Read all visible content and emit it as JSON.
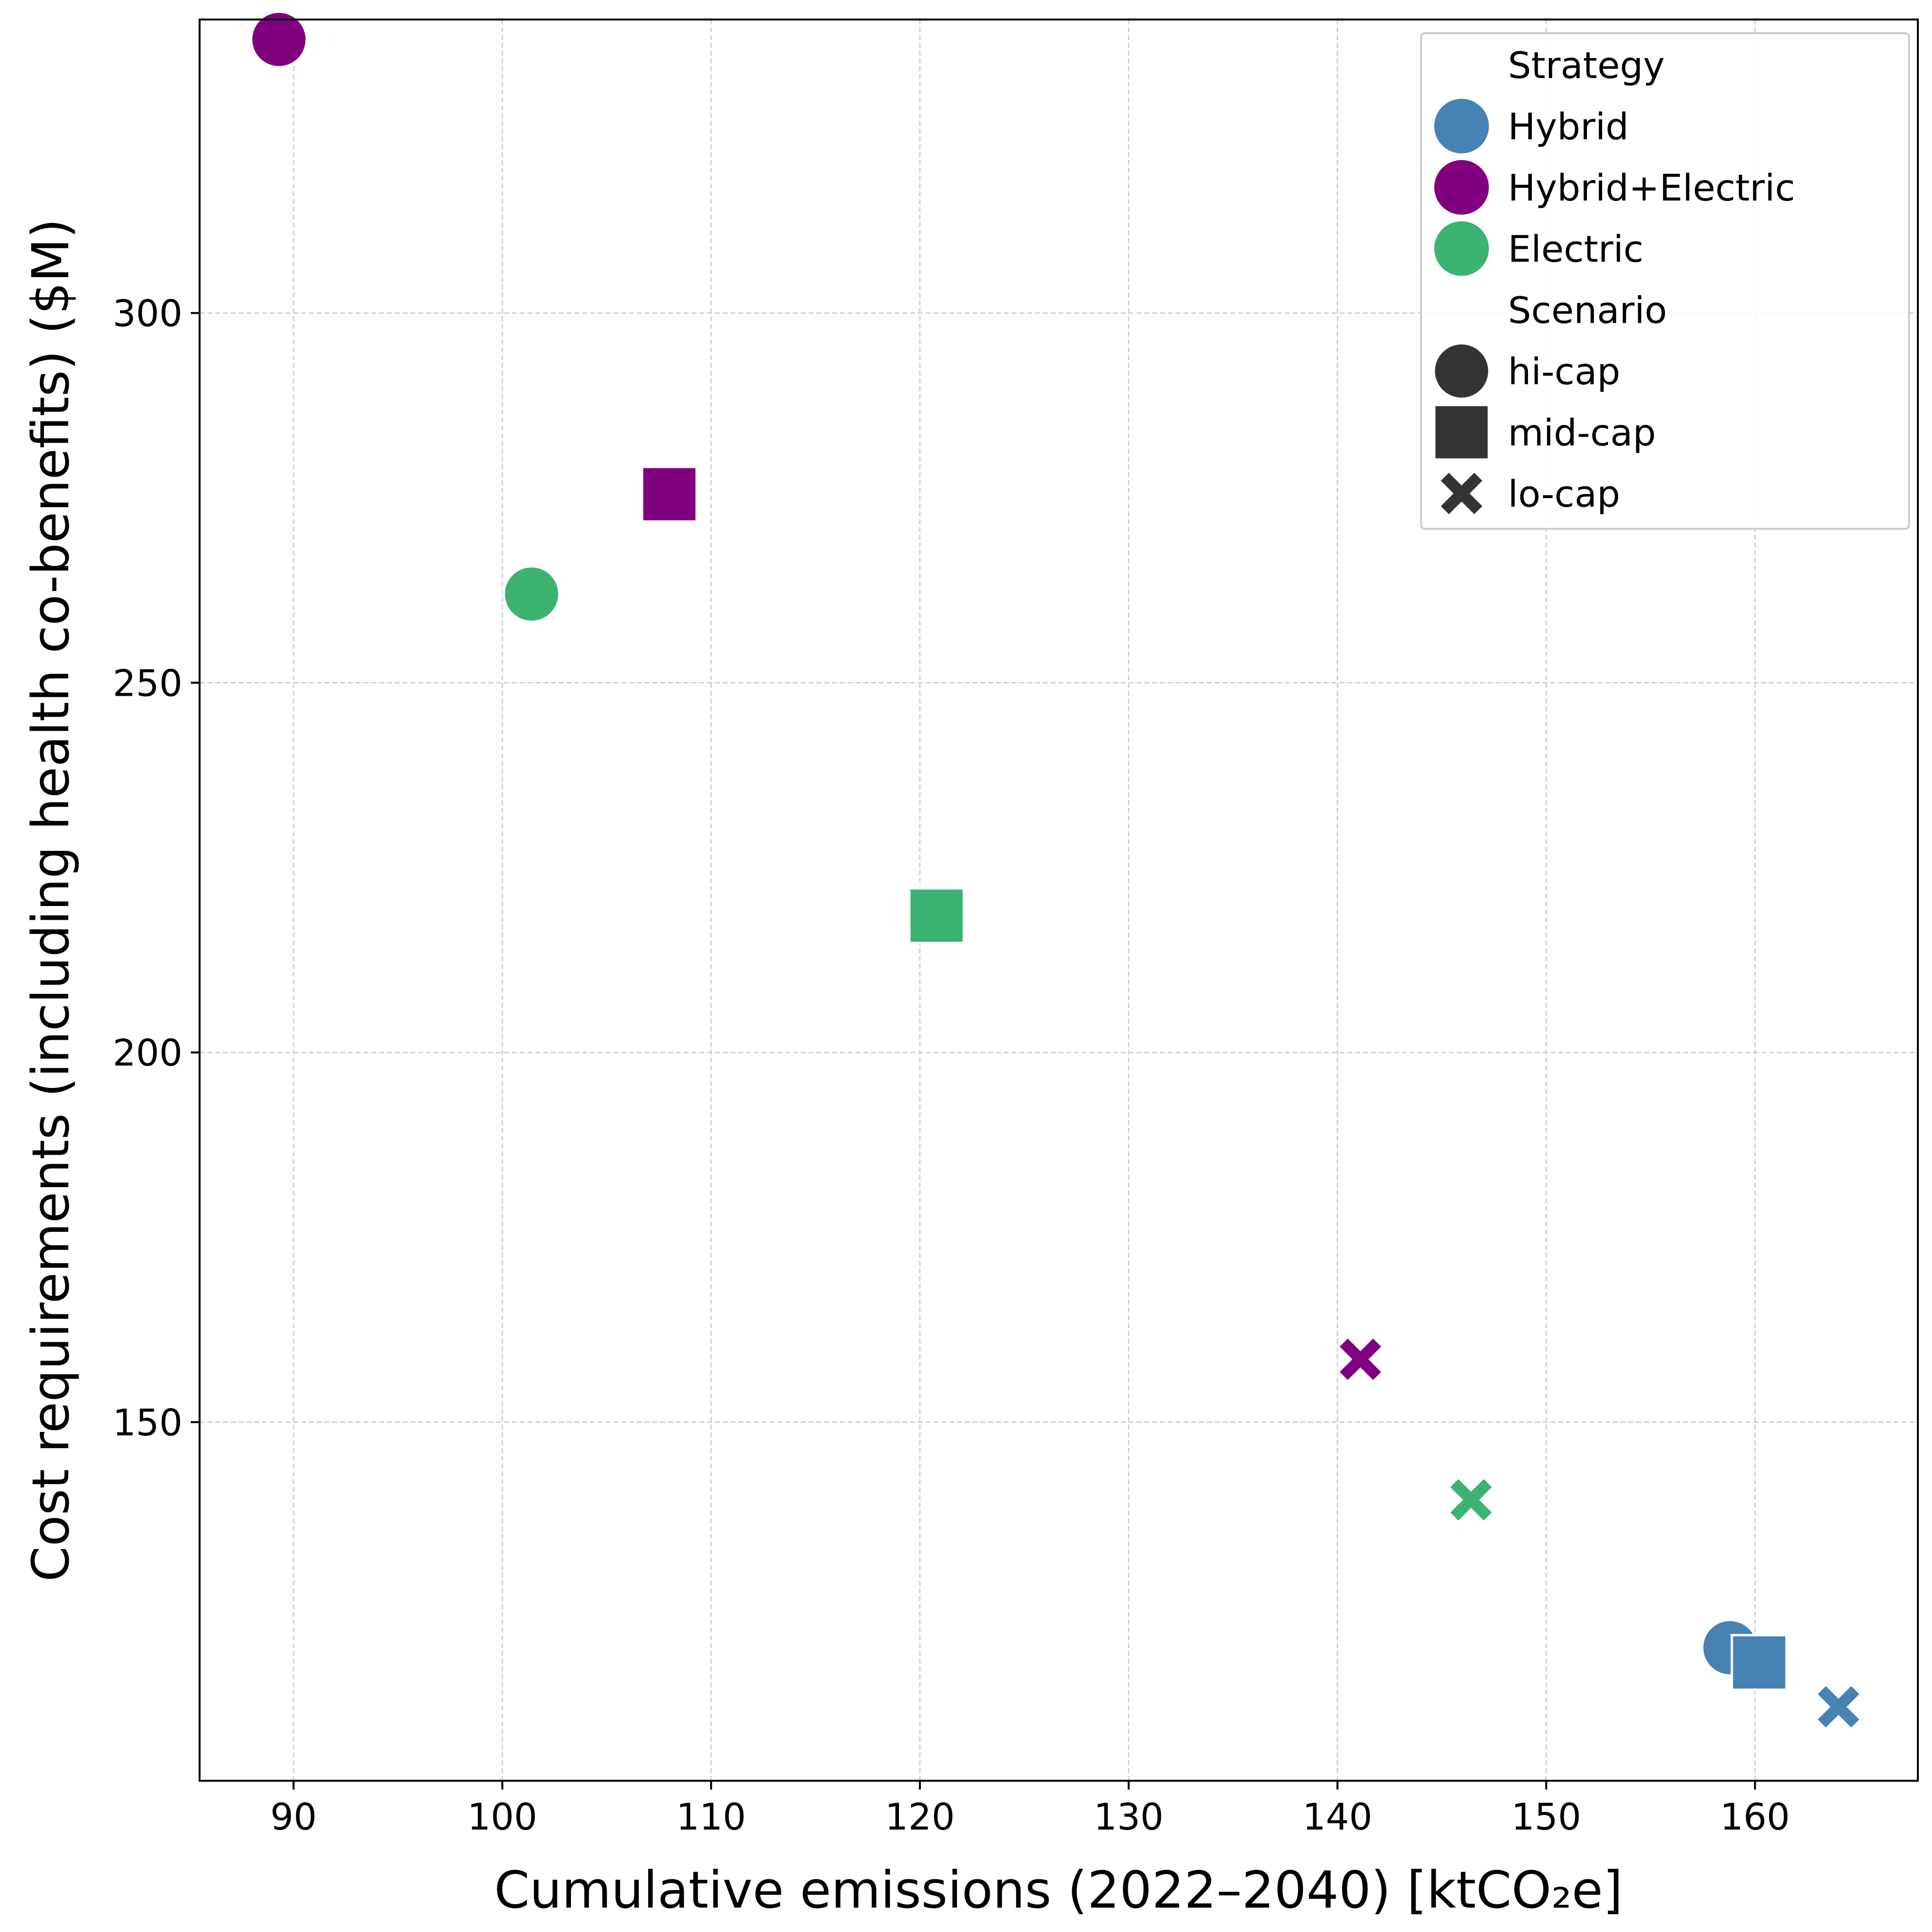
{
  "chart_data": {
    "type": "scatter",
    "title": "",
    "xlabel": "Cumulative emissions (2022–2040) [ktCO₂e]",
    "ylabel": "Cost requirements (including health co-benefits) ($M)",
    "xlim": [
      85.5,
      167.8
    ],
    "ylim": [
      101.5,
      339.7
    ],
    "xticks": [
      90,
      100,
      110,
      120,
      130,
      140,
      150,
      160
    ],
    "yticks": [
      150,
      200,
      250,
      300
    ],
    "grid": true,
    "legend": {
      "position": "top-right",
      "hue_title": "Strategy",
      "hue_entries": [
        {
          "label": "Hybrid",
          "color": "#4682b4"
        },
        {
          "label": "Hybrid+Electric",
          "color": "#800080"
        },
        {
          "label": "Electric",
          "color": "#3cb371"
        }
      ],
      "style_title": "Scenario",
      "style_entries": [
        {
          "label": "hi-cap",
          "marker": "circle"
        },
        {
          "label": "mid-cap",
          "marker": "square"
        },
        {
          "label": "lo-cap",
          "marker": "x"
        }
      ],
      "style_marker_color": "#333333"
    },
    "points": [
      {
        "strategy": "Hybrid+Electric",
        "scenario": "hi-cap",
        "x": 89.3,
        "y": 337.0
      },
      {
        "strategy": "Hybrid+Electric",
        "scenario": "mid-cap",
        "x": 108.0,
        "y": 275.5
      },
      {
        "strategy": "Electric",
        "scenario": "hi-cap",
        "x": 101.4,
        "y": 262.0
      },
      {
        "strategy": "Electric",
        "scenario": "mid-cap",
        "x": 120.8,
        "y": 218.5
      },
      {
        "strategy": "Hybrid+Electric",
        "scenario": "lo-cap",
        "x": 141.1,
        "y": 158.5
      },
      {
        "strategy": "Electric",
        "scenario": "lo-cap",
        "x": 146.4,
        "y": 139.5
      },
      {
        "strategy": "Hybrid",
        "scenario": "hi-cap",
        "x": 158.8,
        "y": 119.5
      },
      {
        "strategy": "Hybrid",
        "scenario": "mid-cap",
        "x": 160.2,
        "y": 117.5
      },
      {
        "strategy": "Hybrid",
        "scenario": "lo-cap",
        "x": 164.0,
        "y": 111.5
      }
    ]
  }
}
